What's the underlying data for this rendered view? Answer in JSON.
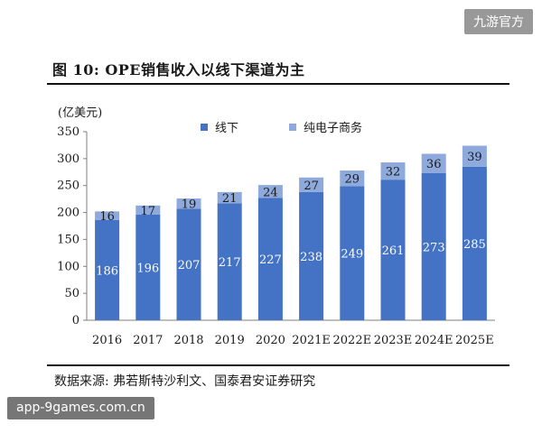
{
  "watermark_top": "九游官方",
  "watermark_bottom": "app-9games.com.cn",
  "figure_title": "图 10:  OPE销售收入以线下渠道为主",
  "source_note": "数据来源: 弗若斯特沙利文、国泰君安证券研究",
  "colors": {
    "offline": "#4472C4",
    "ecommerce": "#8EA9DB",
    "axis": "#7f7f7f"
  },
  "chart_data": {
    "type": "bar",
    "stacked": true,
    "unit_label": "(亿美元)",
    "categories": [
      "2016",
      "2017",
      "2018",
      "2019",
      "2020",
      "2021E",
      "2022E",
      "2023E",
      "2024E",
      "2025E"
    ],
    "series": [
      {
        "name": "线下",
        "values": [
          186,
          196,
          207,
          217,
          227,
          238,
          249,
          261,
          273,
          285
        ]
      },
      {
        "name": "纯电子商务",
        "values": [
          16,
          17,
          19,
          21,
          24,
          27,
          29,
          32,
          36,
          39
        ]
      }
    ],
    "ylim": [
      0,
      350
    ],
    "yticks": [
      0,
      50,
      100,
      150,
      200,
      250,
      300,
      350
    ],
    "grid": false,
    "legend_position": "top"
  }
}
